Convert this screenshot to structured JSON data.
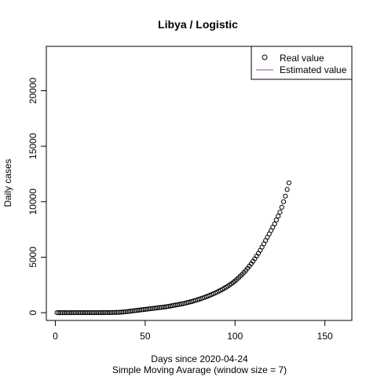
{
  "chart_data": {
    "type": "scatter",
    "title": "Libya / Logistic",
    "xlabel": "Days since 2020-04-24",
    "sublabel": "Simple Moving Avarage (window size = 7)",
    "ylabel": "Daily cases",
    "xlim": [
      -5,
      165
    ],
    "ylim": [
      -700,
      24000
    ],
    "x_ticks": [
      0,
      50,
      100,
      150
    ],
    "y_ticks": [
      0,
      5000,
      10000,
      15000,
      20000
    ],
    "grid": false,
    "legend_position": "top-right",
    "series": [
      {
        "name": "Real value",
        "style": "open-circle",
        "color": "#000000",
        "x": [
          1,
          2,
          3,
          4,
          5,
          6,
          7,
          8,
          9,
          10,
          11,
          12,
          13,
          14,
          15,
          16,
          17,
          18,
          19,
          20,
          21,
          22,
          23,
          24,
          25,
          26,
          27,
          28,
          29,
          30,
          31,
          32,
          33,
          34,
          35,
          36,
          37,
          38,
          39,
          40,
          41,
          42,
          43,
          44,
          45,
          46,
          47,
          48,
          49,
          50,
          51,
          52,
          53,
          54,
          55,
          56,
          57,
          58,
          59,
          60,
          61,
          62,
          63,
          64,
          65,
          66,
          67,
          68,
          69,
          70,
          71,
          72,
          73,
          74,
          75,
          76,
          77,
          78,
          79,
          80,
          81,
          82,
          83,
          84,
          85,
          86,
          87,
          88,
          89,
          90,
          91,
          92,
          93,
          94,
          95,
          96,
          97,
          98,
          99,
          100,
          101,
          102,
          103,
          104,
          105,
          106,
          107,
          108,
          109,
          110,
          111,
          112,
          113,
          114,
          115,
          116,
          117,
          118,
          119,
          120,
          121,
          122,
          123,
          124,
          125,
          126,
          127,
          128,
          129,
          130
        ],
        "y": [
          1,
          1,
          1,
          1,
          1,
          1,
          1,
          1,
          2,
          2,
          2,
          2,
          2,
          2,
          3,
          3,
          3,
          3,
          4,
          4,
          4,
          5,
          5,
          6,
          6,
          7,
          8,
          9,
          10,
          12,
          14,
          17,
          20,
          25,
          30,
          40,
          50,
          65,
          80,
          100,
          120,
          140,
          160,
          180,
          200,
          220,
          240,
          260,
          280,
          300,
          320,
          340,
          360,
          380,
          400,
          420,
          440,
          460,
          480,
          500,
          520,
          540,
          570,
          600,
          630,
          660,
          690,
          720,
          750,
          780,
          810,
          850,
          890,
          930,
          970,
          1010,
          1060,
          1110,
          1160,
          1210,
          1260,
          1320,
          1380,
          1440,
          1500,
          1570,
          1640,
          1710,
          1780,
          1860,
          1940,
          2020,
          2110,
          2200,
          2290,
          2390,
          2500,
          2610,
          2730,
          2860,
          3000,
          3150,
          3300,
          3460,
          3630,
          3810,
          4000,
          4200,
          4410,
          4630,
          4860,
          5100,
          5350,
          5620,
          5900,
          6200,
          6500,
          6800,
          7100,
          7400,
          7700,
          8000,
          8350,
          8700,
          9050,
          9500,
          10000,
          10500,
          11100,
          11700
        ]
      },
      {
        "name": "Estimated value",
        "style": "line",
        "color": "#8e4f9e",
        "x": [],
        "y": []
      }
    ]
  }
}
